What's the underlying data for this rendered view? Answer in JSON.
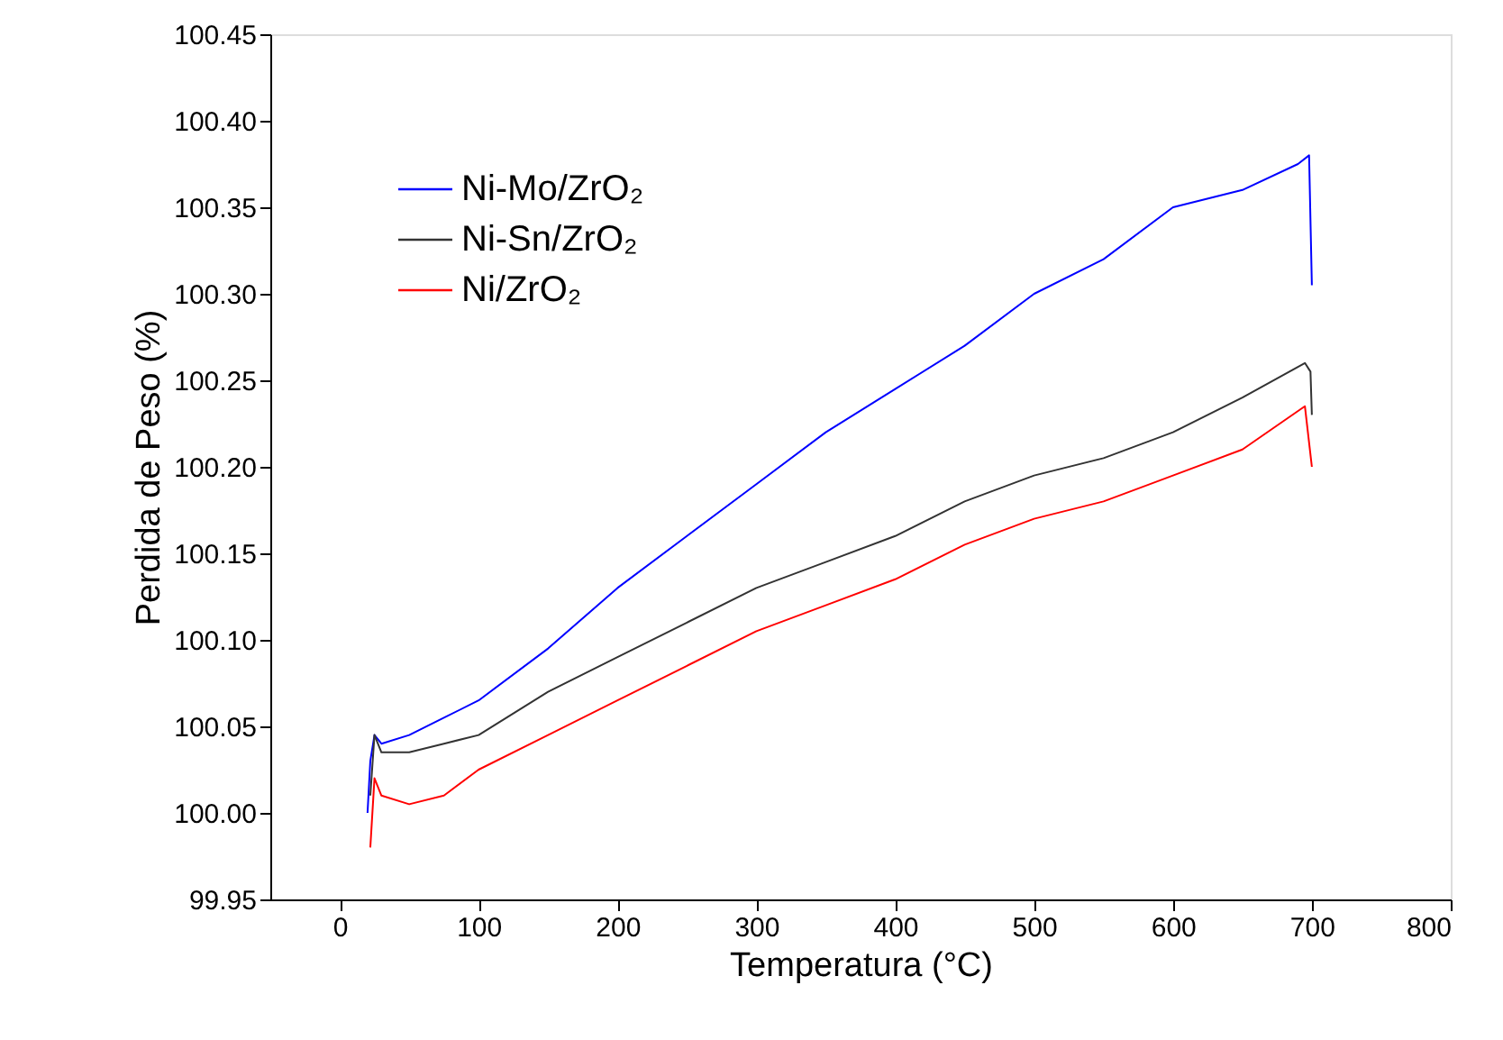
{
  "chart_data": {
    "type": "line",
    "xlabel": "Temperatura (°C)",
    "ylabel": "Perdida de Peso (%)",
    "xlim": [
      -50,
      800
    ],
    "xticks": [
      0,
      100,
      200,
      300,
      400,
      500,
      600,
      700,
      800
    ],
    "ylim": [
      99.95,
      100.45
    ],
    "yticks": [
      99.95,
      {
        "value": 100.0,
        "label": "100.00"
      },
      100.05,
      {
        "value": 100.1,
        "label": "100.10"
      },
      100.15,
      {
        "value": 100.2,
        "label": "100.20"
      },
      100.25,
      {
        "value": 100.3,
        "label": "100.30"
      },
      100.35,
      {
        "value": 100.4,
        "label": "100.40"
      },
      100.45
    ],
    "grid": false,
    "legend": "top left",
    "marker": "none",
    "line_style": "solid",
    "series": [
      {
        "name": "Ni-Mo/ZrO₂",
        "color": "#0000ff",
        "x": [
          20,
          22,
          25,
          30,
          50,
          75,
          100,
          150,
          200,
          250,
          300,
          350,
          400,
          450,
          500,
          550,
          600,
          650,
          690,
          698,
          700
        ],
        "values": [
          100.0,
          100.03,
          100.045,
          100.04,
          100.045,
          100.055,
          100.065,
          100.095,
          100.13,
          100.16,
          100.19,
          100.22,
          100.245,
          100.27,
          100.3,
          100.32,
          100.35,
          100.36,
          100.375,
          100.38,
          100.305
        ]
      },
      {
        "name": "Ni-Sn/ZrO₂",
        "color": "#333333",
        "x": [
          22,
          25,
          30,
          50,
          75,
          100,
          150,
          200,
          250,
          300,
          350,
          400,
          450,
          500,
          550,
          600,
          650,
          695,
          699,
          700
        ],
        "values": [
          100.01,
          100.045,
          100.035,
          100.035,
          100.04,
          100.045,
          100.07,
          100.09,
          100.11,
          100.13,
          100.145,
          100.16,
          100.18,
          100.195,
          100.205,
          100.22,
          100.24,
          100.26,
          100.255,
          100.23
        ]
      },
      {
        "name": "Ni/ZrO₂",
        "color": "#ff0000",
        "x": [
          22,
          25,
          30,
          50,
          75,
          100,
          150,
          200,
          250,
          300,
          350,
          400,
          450,
          500,
          550,
          600,
          650,
          695,
          700
        ],
        "values": [
          99.98,
          100.02,
          100.01,
          100.005,
          100.01,
          100.025,
          100.045,
          100.065,
          100.085,
          100.105,
          100.12,
          100.135,
          100.155,
          100.17,
          100.18,
          100.195,
          100.21,
          100.235,
          100.2
        ]
      }
    ]
  }
}
